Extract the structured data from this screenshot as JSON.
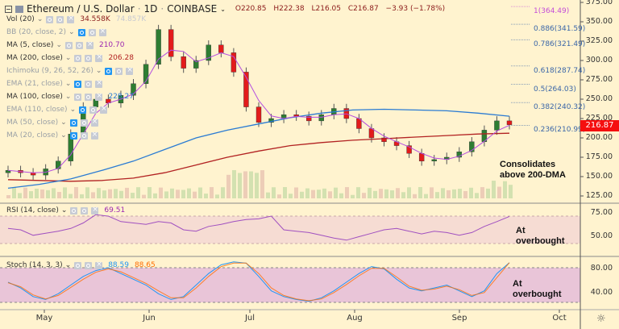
{
  "header": {
    "symbol": "Ethereum / U.S. Dollar",
    "interval": "1D",
    "exchange": "COINBASE",
    "open": "O220.85",
    "high": "H222.38",
    "low": "L216.05",
    "close": "C216.87",
    "change": "−3.93 (−1.78%)"
  },
  "indicators": [
    {
      "label": "Vol (20)",
      "value": "34.558K",
      "value2": "74.857K",
      "color": "#8b1a1a",
      "color2": "#c7c9d1",
      "dim": false
    },
    {
      "label": "BB (20, close, 2)",
      "value": "",
      "dim": true
    },
    {
      "label": "MA (5, close)",
      "value": "210.70",
      "color": "#9c27b0",
      "dim": false
    },
    {
      "label": "MA (200, close)",
      "value": "206.28",
      "color": "#b22222",
      "dim": false
    },
    {
      "label": "Ichimoku (9, 26, 52, 26)",
      "value": "",
      "dim": true
    },
    {
      "label": "EMA (21, close)",
      "value": "",
      "dim": true
    },
    {
      "label": "MA (100, close)",
      "value": "228.27",
      "color": "#2a7bd3",
      "dim": false
    },
    {
      "label": "EMA (110, close)",
      "value": "",
      "dim": true
    },
    {
      "label": "MA (50, close)",
      "value": "",
      "dim": true
    },
    {
      "label": "MA (20, close)",
      "value": "",
      "dim": true
    }
  ],
  "price_axis": {
    "ticks": [
      "375.00",
      "350.00",
      "325.00",
      "300.00",
      "275.00",
      "250.00",
      "225.00",
      "200.00",
      "175.00",
      "150.00",
      "125.00"
    ],
    "last_price": "216.87",
    "last_price_color": "#f50f0f"
  },
  "fib_levels": [
    {
      "label": "1(364.49)",
      "value": 364.49,
      "color": "#c44dd8"
    },
    {
      "label": "0.886(341.59)",
      "value": 341.59,
      "color": "#3a66a8"
    },
    {
      "label": "0.786(321.49)",
      "value": 321.49,
      "color": "#3a66a8"
    },
    {
      "label": "0.618(287.74)",
      "value": 287.74,
      "color": "#3a66a8"
    },
    {
      "label": "0.5(264.03)",
      "value": 264.03,
      "color": "#3a66a8"
    },
    {
      "label": "0.382(240.32)",
      "value": 240.32,
      "color": "#3a66a8"
    },
    {
      "label": "0.236(210.99)",
      "value": 210.99,
      "color": "#3a66a8"
    }
  ],
  "annotations": {
    "price": "Consolidates\nabove 200-DMA",
    "rsi": "At\noverbought",
    "stoch": "At\noverbought"
  },
  "rsi": {
    "label": "RSI (14, close)",
    "value": "69.51",
    "ticks": [
      "75.00",
      "50.00"
    ],
    "band": [
      30,
      70
    ]
  },
  "stoch": {
    "label": "Stoch (14, 3, 3)",
    "k_value": "88.59",
    "d_value": "88.65",
    "k_color": "#2196f3",
    "d_color": "#ff6d00",
    "ticks": [
      "80.00",
      "40.00"
    ],
    "band": [
      20,
      80
    ]
  },
  "time_axis": {
    "months": [
      "May",
      "Jun",
      "Jul",
      "Aug",
      "Sep",
      "Oct"
    ]
  },
  "chart_data": {
    "type": "candlestick",
    "title": "Ethereum / U.S. Dollar 1D COINBASE",
    "ylim": [
      120,
      380
    ],
    "x_labels": [
      "May",
      "Jun",
      "Jul",
      "Aug",
      "Sep",
      "Oct"
    ],
    "ma200": [
      146,
      145,
      144,
      145,
      148,
      155,
      165,
      175,
      183,
      190,
      194,
      197,
      199,
      201,
      203,
      205,
      206
    ],
    "ma100": [
      135,
      140,
      147,
      158,
      170,
      185,
      200,
      210,
      218,
      226,
      232,
      236,
      237,
      236,
      235,
      232,
      228
    ],
    "closes": [
      158,
      155,
      152,
      160,
      170,
      205,
      240,
      250,
      245,
      255,
      270,
      295,
      340,
      305,
      290,
      300,
      320,
      310,
      285,
      240,
      220,
      225,
      230,
      228,
      222,
      230,
      238,
      225,
      212,
      200,
      195,
      190,
      180,
      170,
      172,
      175,
      182,
      195,
      210,
      222,
      217
    ],
    "rsi_values": [
      52,
      50,
      42,
      45,
      48,
      52,
      60,
      72,
      70,
      62,
      60,
      58,
      62,
      60,
      50,
      48,
      55,
      58,
      62,
      65,
      66,
      70,
      50,
      48,
      46,
      42,
      38,
      35,
      40,
      45,
      50,
      52,
      48,
      44,
      48,
      46,
      42,
      46,
      55,
      62,
      69.51
    ],
    "stoch_k": [
      55,
      45,
      30,
      25,
      35,
      50,
      65,
      75,
      80,
      70,
      60,
      50,
      35,
      25,
      30,
      50,
      70,
      85,
      90,
      88,
      65,
      40,
      30,
      25,
      22,
      28,
      40,
      55,
      70,
      82,
      78,
      60,
      45,
      40,
      45,
      50,
      40,
      30,
      40,
      70,
      88.59
    ],
    "stoch_d": [
      54,
      47,
      33,
      26,
      32,
      46,
      60,
      72,
      78,
      73,
      63,
      53,
      40,
      28,
      28,
      45,
      65,
      82,
      88,
      88,
      70,
      45,
      32,
      26,
      23,
      26,
      37,
      51,
      66,
      79,
      79,
      64,
      48,
      41,
      43,
      48,
      42,
      32,
      37,
      63,
      88.65
    ]
  }
}
